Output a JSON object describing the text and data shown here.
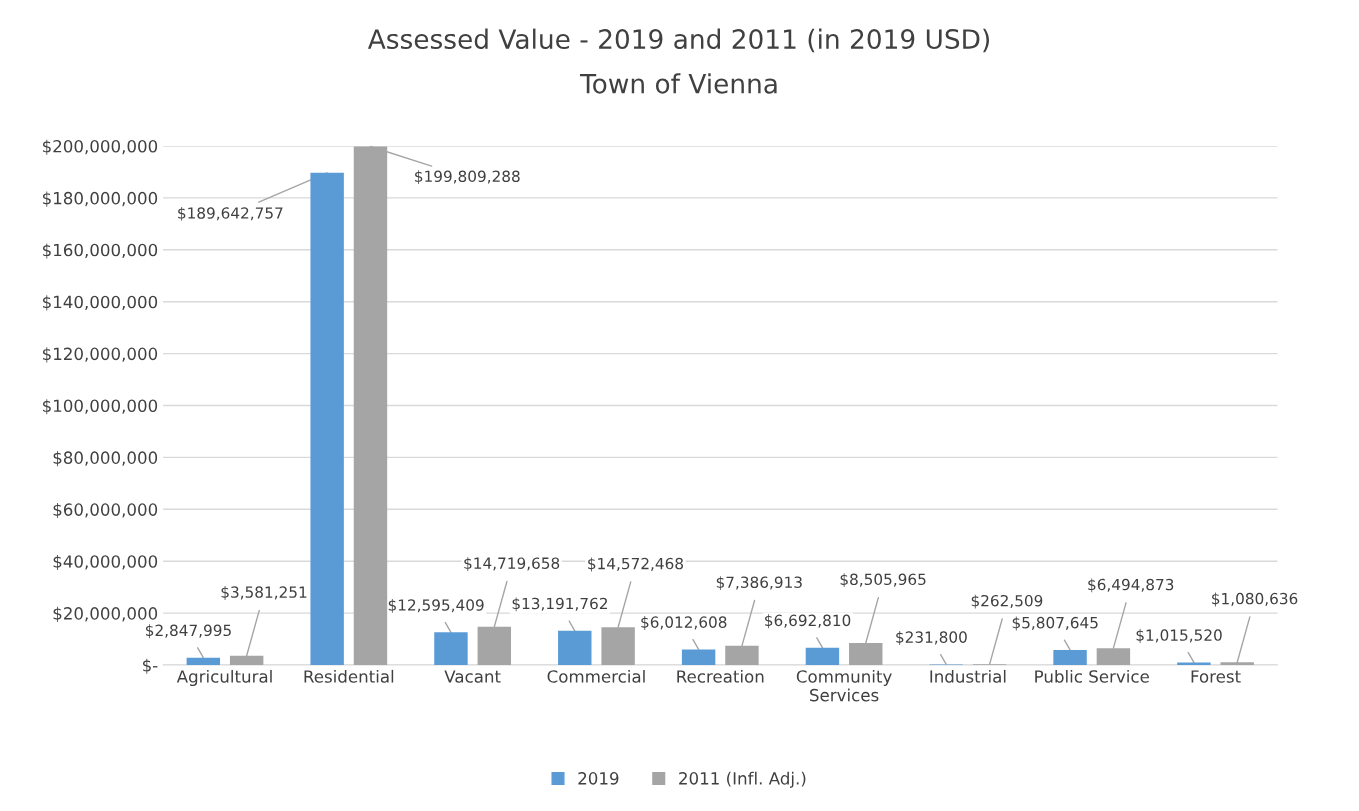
{
  "chart_data": {
    "type": "bar",
    "title": "Assessed Value - 2019 and 2011 (in 2019 USD)",
    "subtitle": "Town of Vienna",
    "categories": [
      "Agricultural",
      "Residential",
      "Vacant",
      "Commercial",
      "Recreation",
      "Community\nServices",
      "Industrial",
      "Public Service",
      "Forest"
    ],
    "series": [
      {
        "name": "2019",
        "color": "#5b9bd5",
        "values": [
          2847995,
          189642757,
          12595409,
          13191762,
          6012608,
          6692810,
          231800,
          5807645,
          1015520
        ],
        "value_labels": [
          "$2,847,995",
          "$189,642,757",
          "$12,595,409",
          "$13,191,762",
          "$6,012,608",
          "$6,692,810",
          "$231,800",
          "$5,807,645",
          "$1,015,520"
        ]
      },
      {
        "name": "2011 (Infl. Adj.)",
        "color": "#a5a5a5",
        "values": [
          3581251,
          199809288,
          14719658,
          14572468,
          7386913,
          8505965,
          262509,
          6494873,
          1080636
        ],
        "value_labels": [
          "$3,581,251",
          "$199,809,288",
          "$14,719,658",
          "$14,572,468",
          "$7,386,913",
          "$8,505,965",
          "$262,509",
          "$6,494,873",
          "$1,080,636"
        ]
      }
    ],
    "ylim": [
      0,
      200000000
    ],
    "yticks": [
      {
        "value": 0,
        "label": "$-"
      },
      {
        "value": 20000000,
        "label": "$20,000,000"
      },
      {
        "value": 40000000,
        "label": "$40,000,000"
      },
      {
        "value": 60000000,
        "label": "$60,000,000"
      },
      {
        "value": 80000000,
        "label": "$80,000,000"
      },
      {
        "value": 100000000,
        "label": "$100,000,000"
      },
      {
        "value": 120000000,
        "label": "$120,000,000"
      },
      {
        "value": 140000000,
        "label": "$140,000,000"
      },
      {
        "value": 160000000,
        "label": "$160,000,000"
      },
      {
        "value": 180000000,
        "label": "$180,000,000"
      },
      {
        "value": 200000000,
        "label": "$200,000,000"
      }
    ],
    "grid": "y",
    "legend": "bottom"
  }
}
